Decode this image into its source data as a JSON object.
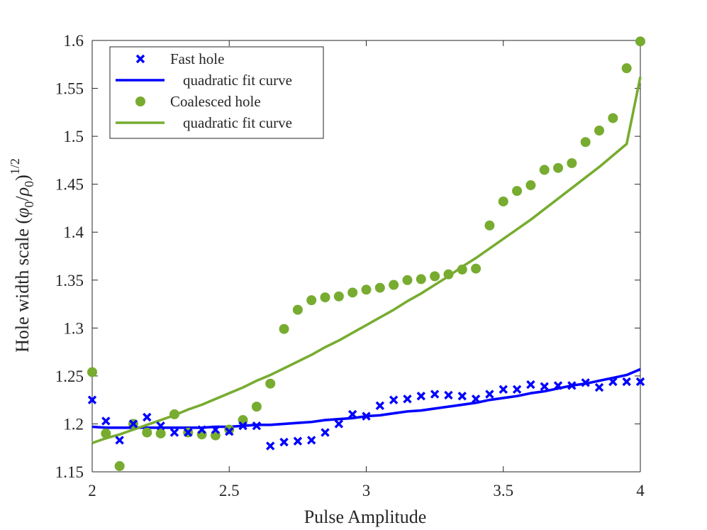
{
  "chart_data": {
    "type": "scatter",
    "title": "",
    "xlabel": "Pulse Amplitude",
    "ylabel": {
      "main": "Hole width scale (",
      "phi": "φ",
      "phi_sub": "0",
      "slash": "/",
      "rho": "ρ",
      "rho_sub": "0",
      "close": ")",
      "exponent": "1/2"
    },
    "xlim": [
      2,
      4
    ],
    "ylim": [
      1.15,
      1.6
    ],
    "xticks": [
      2,
      2.5,
      3,
      3.5,
      4
    ],
    "xtick_labels": [
      "2",
      "2.5",
      "3",
      "3.5",
      "4"
    ],
    "yticks": [
      1.15,
      1.2,
      1.25,
      1.3,
      1.35,
      1.4,
      1.45,
      1.5,
      1.55,
      1.6
    ],
    "ytick_labels": [
      "1.15",
      "1.2",
      "1.25",
      "1.3",
      "1.35",
      "1.4",
      "1.45",
      "1.5",
      "1.55",
      "1.6"
    ],
    "grid": false,
    "legend_position": "top-left",
    "legend": [
      {
        "label": "Fast hole",
        "kind": "marker-x",
        "color": "#0000ff"
      },
      {
        "label": "quadratic fit curve",
        "kind": "line",
        "color": "#0000ff"
      },
      {
        "label": "Coalesced hole",
        "kind": "marker-dot",
        "color": "#77ac30"
      },
      {
        "label": "quadratic fit curve",
        "kind": "line",
        "color": "#77ac30"
      }
    ],
    "x": [
      2.0,
      2.05,
      2.1,
      2.15,
      2.2,
      2.25,
      2.3,
      2.35,
      2.4,
      2.45,
      2.5,
      2.55,
      2.6,
      2.65,
      2.7,
      2.75,
      2.8,
      2.85,
      2.9,
      2.95,
      3.0,
      3.05,
      3.1,
      3.15,
      3.2,
      3.25,
      3.3,
      3.35,
      3.4,
      3.45,
      3.5,
      3.55,
      3.6,
      3.65,
      3.7,
      3.75,
      3.8,
      3.85,
      3.9,
      3.95,
      4.0
    ],
    "series": [
      {
        "name": "Fast hole",
        "marker": "x",
        "color": "#0000ff",
        "values": [
          1.225,
          1.203,
          1.183,
          1.2,
          1.207,
          1.198,
          1.191,
          1.191,
          1.194,
          1.194,
          1.192,
          1.198,
          1.198,
          1.177,
          1.181,
          1.182,
          1.183,
          1.191,
          1.2,
          1.21,
          1.208,
          1.219,
          1.225,
          1.226,
          1.229,
          1.231,
          1.23,
          1.229,
          1.226,
          1.231,
          1.236,
          1.236,
          1.241,
          1.239,
          1.24,
          1.24,
          1.243,
          1.238,
          1.244,
          1.244,
          1.244
        ]
      },
      {
        "name": "quadratic fit curve",
        "fit_of": "Fast hole",
        "type": "line",
        "color": "#0000ff",
        "values": [
          1.197,
          1.196,
          1.196,
          1.196,
          1.196,
          1.196,
          1.196,
          1.196,
          1.196,
          1.197,
          1.197,
          1.198,
          1.199,
          1.199,
          1.2,
          1.201,
          1.202,
          1.204,
          1.205,
          1.206,
          1.208,
          1.209,
          1.211,
          1.213,
          1.214,
          1.216,
          1.218,
          1.22,
          1.222,
          1.225,
          1.227,
          1.229,
          1.232,
          1.234,
          1.237,
          1.24,
          1.242,
          1.245,
          1.248,
          1.251,
          1.257
        ]
      },
      {
        "name": "Coalesced hole",
        "marker": "o",
        "color": "#77ac30",
        "values": [
          1.254,
          1.19,
          1.156,
          1.2,
          1.191,
          1.19,
          1.21,
          1.191,
          1.189,
          1.188,
          1.194,
          1.204,
          1.218,
          1.242,
          1.299,
          1.319,
          1.329,
          1.332,
          1.333,
          1.337,
          1.34,
          1.342,
          1.345,
          1.35,
          1.351,
          1.354,
          1.356,
          1.361,
          1.362,
          1.407,
          1.432,
          1.443,
          1.449,
          1.465,
          1.467,
          1.472,
          1.494,
          1.506,
          1.519,
          1.571,
          1.599
        ]
      },
      {
        "name": "quadratic fit curve",
        "fit_of": "Coalesced hole",
        "type": "line",
        "color": "#77ac30",
        "values": [
          1.18,
          1.185,
          1.189,
          1.194,
          1.199,
          1.204,
          1.209,
          1.215,
          1.22,
          1.226,
          1.232,
          1.238,
          1.245,
          1.251,
          1.258,
          1.265,
          1.272,
          1.28,
          1.287,
          1.295,
          1.303,
          1.311,
          1.319,
          1.328,
          1.336,
          1.345,
          1.354,
          1.364,
          1.373,
          1.383,
          1.393,
          1.403,
          1.413,
          1.424,
          1.435,
          1.446,
          1.457,
          1.468,
          1.48,
          1.492,
          1.562
        ]
      }
    ]
  }
}
